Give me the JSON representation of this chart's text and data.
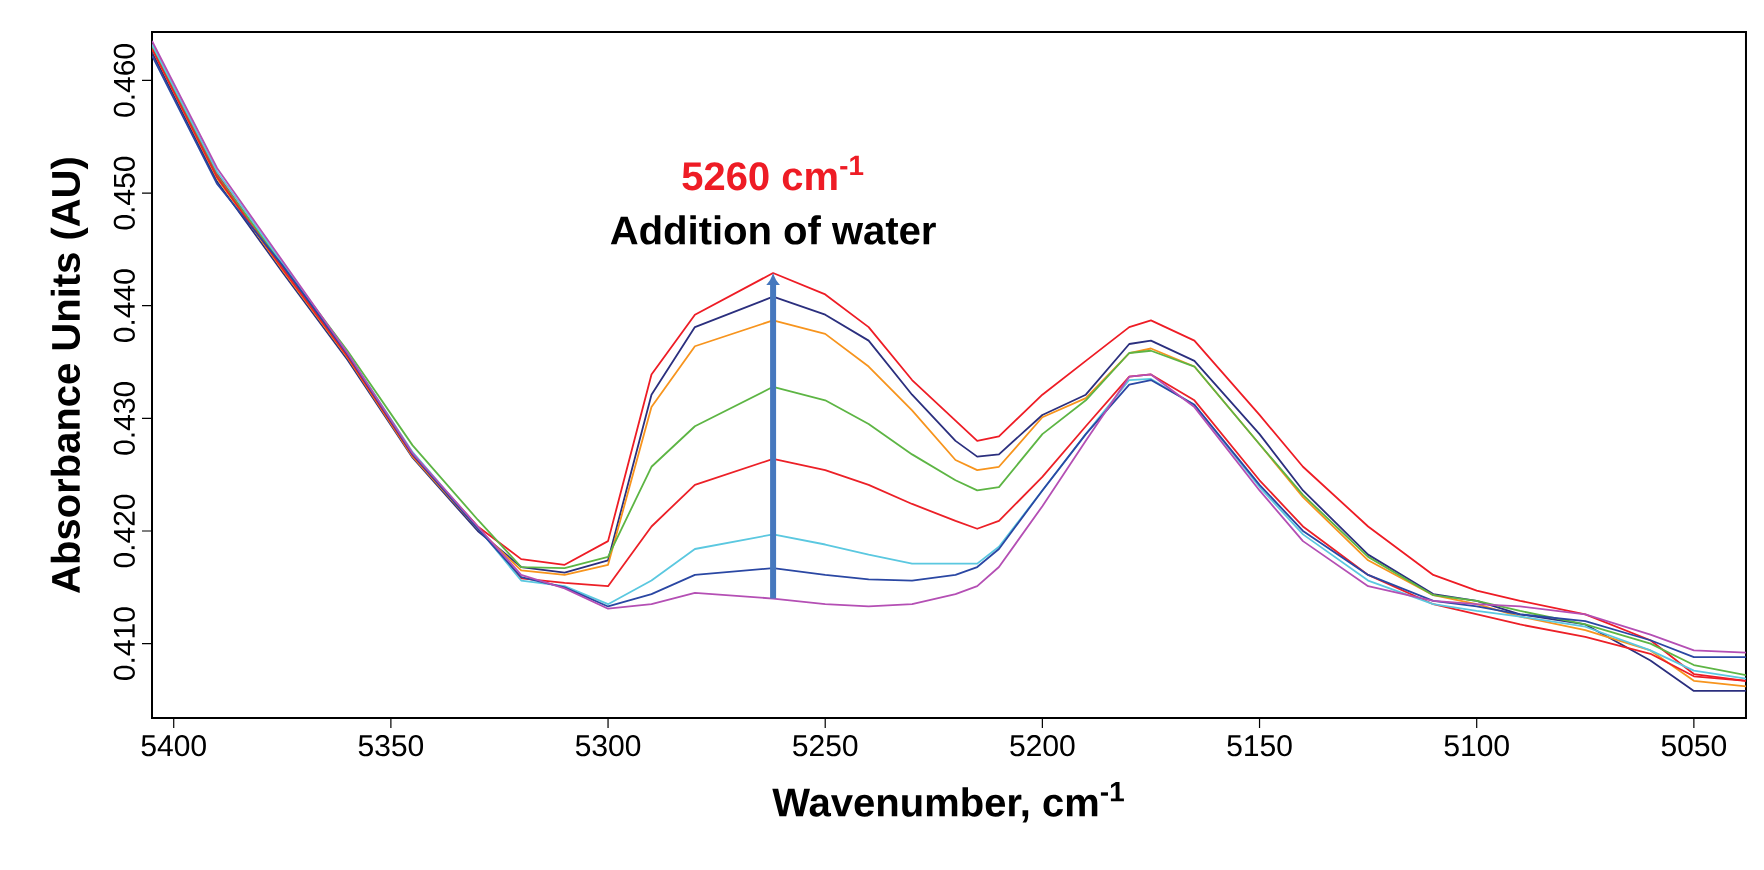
{
  "chart_data": {
    "type": "line",
    "xlabel": "Wavenumber, cm$^{-1}$",
    "ylabel": "Absorbance Units (AU)",
    "annotations": [
      "5260 cm$^{-1}$",
      "Addition of water"
    ],
    "xlim": [
      5405,
      5038
    ],
    "ylim": [
      0.4034,
      0.4643
    ],
    "xticks": [
      5400,
      5350,
      5300,
      5250,
      5200,
      5150,
      5100,
      5050
    ],
    "yticks": [
      {
        "value": 0.41,
        "label": "0.410"
      },
      {
        "value": 0.42,
        "label": "0.420"
      },
      {
        "value": 0.43,
        "label": "0.430"
      },
      {
        "value": 0.44,
        "label": "0.440"
      },
      {
        "value": 0.45,
        "label": "0.450"
      },
      {
        "value": 0.46,
        "label": "0.460"
      }
    ],
    "grid": false,
    "marker": "none",
    "line_style": "solid",
    "x": [
      5405,
      5390,
      5375,
      5360,
      5345,
      5330,
      5320,
      5310,
      5300,
      5290,
      5280,
      5262,
      5250,
      5240,
      5230,
      5220,
      5215,
      5210,
      5200,
      5190,
      5180,
      5175,
      5165,
      5150,
      5140,
      5125,
      5110,
      5100,
      5090,
      5075,
      5060,
      5050,
      5038
    ],
    "series": [
      {
        "color": "#ee1c25",
        "values": [
          0.4632,
          0.4517,
          0.4435,
          0.4357,
          0.4268,
          0.4204,
          0.4175,
          0.417,
          0.4191,
          0.4339,
          0.4392,
          0.4429,
          0.441,
          0.4381,
          0.4334,
          0.4298,
          0.428,
          0.4284,
          0.4321,
          0.4351,
          0.4381,
          0.4387,
          0.4369,
          0.4303,
          0.4257,
          0.4204,
          0.4161,
          0.4147,
          0.4138,
          0.4126,
          0.4103,
          0.4073,
          0.4067
        ]
      },
      {
        "color": "#2b2f7e",
        "values": [
          0.4625,
          0.451,
          0.443,
          0.4352,
          0.4265,
          0.42,
          0.4168,
          0.4163,
          0.4174,
          0.4321,
          0.4381,
          0.4408,
          0.4392,
          0.4369,
          0.4321,
          0.428,
          0.4266,
          0.4268,
          0.4303,
          0.4321,
          0.4366,
          0.4369,
          0.4351,
          0.4286,
          0.4236,
          0.4179,
          0.4144,
          0.4138,
          0.4126,
          0.4117,
          0.4085,
          0.4058,
          0.4058
        ]
      },
      {
        "color": "#f7941d",
        "values": [
          0.4628,
          0.4513,
          0.4432,
          0.4354,
          0.4266,
          0.4202,
          0.4165,
          0.4161,
          0.417,
          0.431,
          0.4364,
          0.4387,
          0.4375,
          0.4346,
          0.4307,
          0.4263,
          0.4254,
          0.4257,
          0.4301,
          0.4318,
          0.4358,
          0.4362,
          0.4346,
          0.4277,
          0.423,
          0.4174,
          0.4143,
          0.4135,
          0.4124,
          0.4112,
          0.4094,
          0.4067,
          0.4062
        ]
      },
      {
        "color": "#5db544",
        "values": [
          0.463,
          0.4515,
          0.4437,
          0.436,
          0.4276,
          0.421,
          0.4168,
          0.4167,
          0.4177,
          0.4257,
          0.4293,
          0.4328,
          0.4316,
          0.4295,
          0.4268,
          0.4245,
          0.4236,
          0.4239,
          0.4286,
          0.4316,
          0.4358,
          0.436,
          0.4346,
          0.4277,
          0.4232,
          0.4177,
          0.4143,
          0.4138,
          0.4129,
          0.4117,
          0.41,
          0.4081,
          0.4072
        ]
      },
      {
        "color": "#ec2027",
        "values": [
          0.4628,
          0.4514,
          0.4433,
          0.4355,
          0.4267,
          0.4203,
          0.4158,
          0.4154,
          0.4151,
          0.4204,
          0.4241,
          0.4264,
          0.4254,
          0.4241,
          0.4224,
          0.4209,
          0.4202,
          0.4209,
          0.4248,
          0.4293,
          0.4337,
          0.4339,
          0.4316,
          0.4245,
          0.4204,
          0.4161,
          0.4135,
          0.4126,
          0.4117,
          0.4106,
          0.4091,
          0.4071,
          0.4067
        ]
      },
      {
        "color": "#5bc8e0",
        "values": [
          0.4632,
          0.4519,
          0.4438,
          0.4358,
          0.427,
          0.4203,
          0.4156,
          0.4151,
          0.4135,
          0.4156,
          0.4184,
          0.4197,
          0.4188,
          0.4179,
          0.4171,
          0.4171,
          0.4171,
          0.4186,
          0.4236,
          0.4286,
          0.4334,
          0.4335,
          0.4312,
          0.4239,
          0.4197,
          0.4156,
          0.4135,
          0.4129,
          0.4124,
          0.4115,
          0.4094,
          0.4076,
          0.4069
        ]
      },
      {
        "color": "#2a47a3",
        "values": [
          0.4622,
          0.4508,
          0.4436,
          0.4357,
          0.4268,
          0.4202,
          0.4159,
          0.415,
          0.4133,
          0.4144,
          0.4161,
          0.4167,
          0.4161,
          0.4157,
          0.4156,
          0.4161,
          0.4168,
          0.4184,
          0.4236,
          0.4286,
          0.433,
          0.4334,
          0.4312,
          0.4241,
          0.42,
          0.4161,
          0.4138,
          0.4133,
          0.4126,
          0.412,
          0.4103,
          0.4088,
          0.4088
        ]
      },
      {
        "color": "#b44fb4",
        "values": [
          0.4635,
          0.4522,
          0.444,
          0.4358,
          0.4269,
          0.4204,
          0.4161,
          0.4149,
          0.4131,
          0.4135,
          0.4145,
          0.414,
          0.4135,
          0.4133,
          0.4135,
          0.4144,
          0.4151,
          0.4168,
          0.4222,
          0.428,
          0.4337,
          0.4339,
          0.431,
          0.4236,
          0.4191,
          0.4151,
          0.4138,
          0.4135,
          0.4133,
          0.4126,
          0.4108,
          0.4094,
          0.4092
        ]
      }
    ]
  }
}
